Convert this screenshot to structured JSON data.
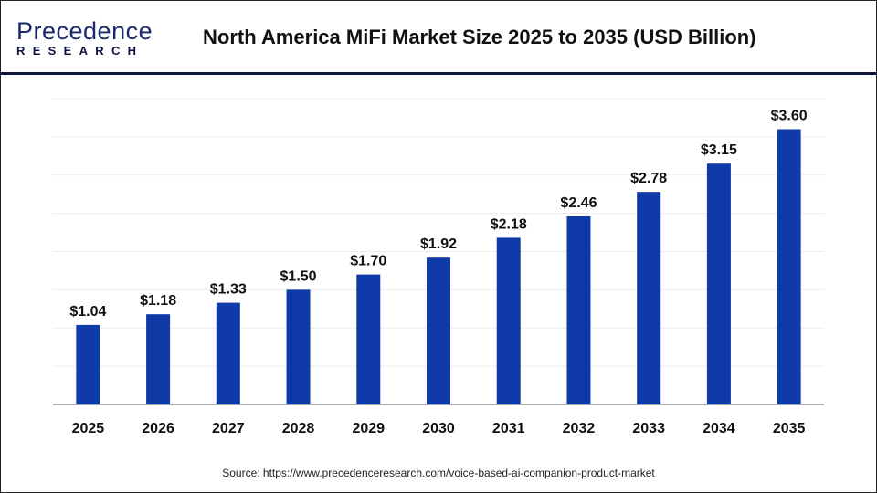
{
  "header": {
    "logo_main": "Precedence",
    "logo_sub": "RESEARCH",
    "title": "North America MiFi Market Size 2025 to 2035 (USD Billion)"
  },
  "footer": {
    "source": "Source: https://www.precedenceresearch.com/voice-based-ai-companion-product-market"
  },
  "chart_data": {
    "type": "bar",
    "title": "North America MiFi Market Size 2025 to 2035 (USD Billion)",
    "categories": [
      "2025",
      "2026",
      "2027",
      "2028",
      "2029",
      "2030",
      "2031",
      "2032",
      "2033",
      "2034",
      "2035"
    ],
    "values": [
      1.04,
      1.18,
      1.33,
      1.5,
      1.7,
      1.92,
      2.18,
      2.46,
      2.78,
      3.15,
      3.6
    ],
    "labels": [
      "$1.04",
      "$1.18",
      "$1.33",
      "$1.50",
      "$1.70",
      "$1.92",
      "$2.18",
      "$2.46",
      "$2.78",
      "$3.15",
      "$3.60"
    ],
    "ylim": [
      0,
      4.0
    ],
    "grid": true,
    "bar_color": "#0f3aa8",
    "xlabel": "",
    "ylabel": ""
  }
}
